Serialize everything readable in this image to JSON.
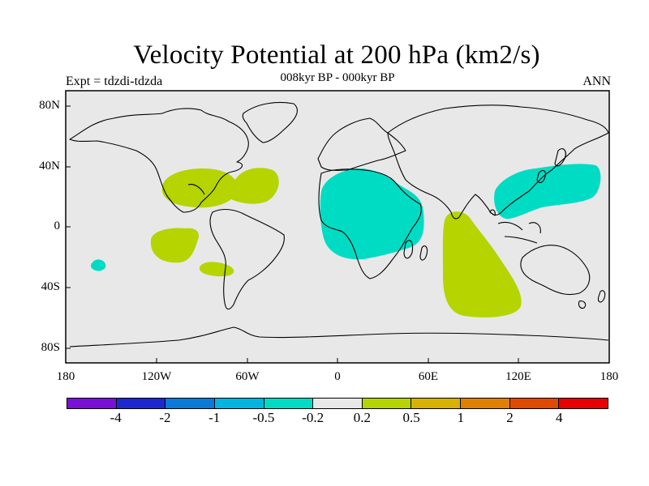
{
  "title": "Velocity Potential at 200 hPa (km2/s)",
  "subtitle": "008kyr BP - 000kyr BP",
  "left_label": "Expt = tdzdi-tdzda",
  "right_label": "ANN",
  "colors": {
    "land_bg": "#e8e8e8",
    "positive": "#b5d400",
    "negative": "#00dcc4",
    "coastline": "#000000"
  },
  "lat_ticks": [
    "80N",
    "40N",
    "0",
    "40S",
    "80S"
  ],
  "lon_ticks": [
    "180",
    "120W",
    "60W",
    "0",
    "60E",
    "120E",
    "180"
  ],
  "colorbar": {
    "colors": [
      "#7a10d8",
      "#1e28d0",
      "#0a7ad8",
      "#00b6e0",
      "#00dcc4",
      "#e8e8e8",
      "#b5d400",
      "#d8b200",
      "#e08000",
      "#e04a00",
      "#e80000"
    ],
    "labels": [
      "-4",
      "-2",
      "-1",
      "-0.5",
      "-0.2",
      "0.2",
      "0.5",
      "1",
      "2",
      "4"
    ]
  }
}
